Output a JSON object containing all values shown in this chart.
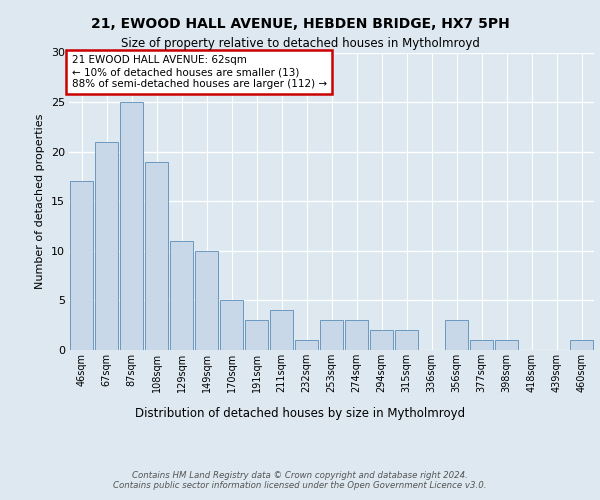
{
  "title_line1": "21, EWOOD HALL AVENUE, HEBDEN BRIDGE, HX7 5PH",
  "title_line2": "Size of property relative to detached houses in Mytholmroyd",
  "xlabel": "Distribution of detached houses by size in Mytholmroyd",
  "ylabel": "Number of detached properties",
  "bar_labels": [
    "46sqm",
    "67sqm",
    "87sqm",
    "108sqm",
    "129sqm",
    "149sqm",
    "170sqm",
    "191sqm",
    "211sqm",
    "232sqm",
    "253sqm",
    "274sqm",
    "294sqm",
    "315sqm",
    "336sqm",
    "356sqm",
    "377sqm",
    "398sqm",
    "418sqm",
    "439sqm",
    "460sqm"
  ],
  "bar_values": [
    17,
    21,
    25,
    19,
    11,
    10,
    5,
    3,
    4,
    1,
    3,
    3,
    2,
    2,
    0,
    3,
    1,
    1,
    0,
    0,
    1
  ],
  "bar_color": "#c8d8e8",
  "bar_edge_color": "#5b8db8",
  "annotation_text": "21 EWOOD HALL AVENUE: 62sqm\n← 10% of detached houses are smaller (13)\n88% of semi-detached houses are larger (112) →",
  "annotation_box_color": "#ffffff",
  "annotation_box_edge_color": "#cc0000",
  "ylim": [
    0,
    30
  ],
  "yticks": [
    0,
    5,
    10,
    15,
    20,
    25,
    30
  ],
  "footer_text": "Contains HM Land Registry data © Crown copyright and database right 2024.\nContains public sector information licensed under the Open Government Licence v3.0.",
  "background_color": "#dde8f0",
  "plot_background_color": "#dde8f0",
  "grid_color": "#ffffff",
  "property_size_sqm": 62
}
